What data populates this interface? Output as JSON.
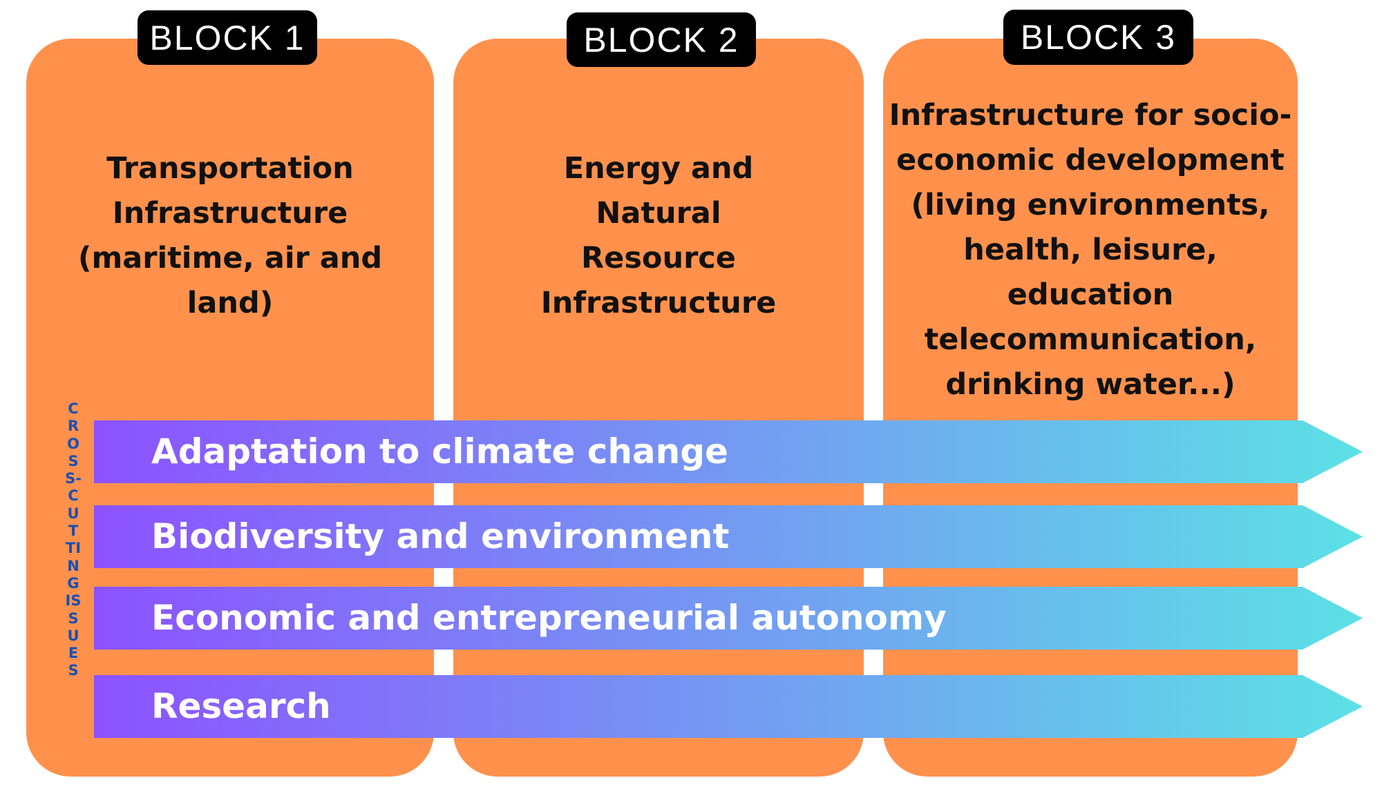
{
  "blocks": [
    {
      "label": "BLOCK 1",
      "text": "Transportation\nInfrastructure\n(maritime, air and\nland)"
    },
    {
      "label": "BLOCK 2",
      "text": "Energy and\nNatural\nResource\nInfrastructure"
    },
    {
      "label": "BLOCK 3",
      "text": "Infrastructure for socio-\neconomic development\n(living environments,\nhealth, leisure,\neducation\ntelecommunication,\ndrinking water...)"
    }
  ],
  "cross_cutting_label": "CROSS-CUTTING ISSUES",
  "issues": [
    "Adaptation to climate change",
    "Biodiversity and environment",
    "Economic and entrepreneurial autonomy",
    "Research"
  ],
  "colors": {
    "card": "#ff914d",
    "label_bg": "#000000",
    "arrow_start": "#8c52ff",
    "arrow_end": "#5ce1e6",
    "vertical_text": "#1a4fb5"
  }
}
